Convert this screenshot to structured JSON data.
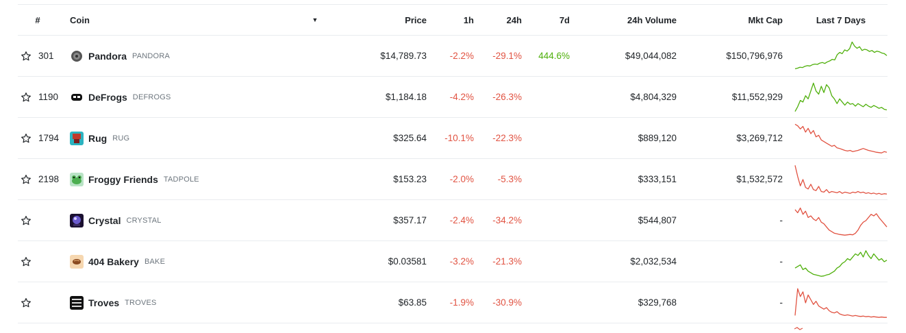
{
  "header": {
    "rank": "#",
    "coin": "Coin",
    "sort_icon": "caret-down-icon",
    "price": "Price",
    "h1": "1h",
    "h24": "24h",
    "d7": "7d",
    "volume": "24h Volume",
    "mcap": "Mkt Cap",
    "chart": "Last 7 Days"
  },
  "colors": {
    "negative": "#e15241",
    "positive": "#4eaf0a"
  },
  "coins": [
    {
      "rank": "301",
      "name": "Pandora",
      "symbol": "PANDORA",
      "icon": "pandora-coin-icon",
      "price": "$14,789.73",
      "h1": "-2.2%",
      "h24": "-29.1%",
      "d7": "444.6%",
      "volume": "$49,044,082",
      "mcap": "$150,796,976",
      "trend": "up",
      "spark": [
        0.1,
        0.12,
        0.15,
        0.14,
        0.18,
        0.2,
        0.19,
        0.23,
        0.25,
        0.24,
        0.28,
        0.3,
        0.27,
        0.32,
        0.35,
        0.4,
        0.38,
        0.55,
        0.62,
        0.58,
        0.7,
        0.66,
        0.74,
        0.95,
        0.82,
        0.75,
        0.8,
        0.68,
        0.72,
        0.7,
        0.65,
        0.68,
        0.62,
        0.66,
        0.64,
        0.6,
        0.58,
        0.52
      ]
    },
    {
      "rank": "1190",
      "name": "DeFrogs",
      "symbol": "DEFROGS",
      "icon": "defrogs-coin-icon",
      "price": "$1,184.18",
      "h1": "-4.2%",
      "h24": "-26.3%",
      "d7": "",
      "volume": "$4,804,329",
      "mcap": "$11,552,929",
      "trend": "up",
      "spark": [
        0.05,
        0.2,
        0.4,
        0.35,
        0.55,
        0.45,
        0.7,
        0.95,
        0.7,
        0.6,
        0.85,
        0.65,
        0.9,
        0.8,
        0.55,
        0.45,
        0.3,
        0.45,
        0.35,
        0.25,
        0.35,
        0.28,
        0.3,
        0.22,
        0.3,
        0.25,
        0.2,
        0.28,
        0.22,
        0.18,
        0.24,
        0.2,
        0.15,
        0.18,
        0.12,
        0.1
      ]
    },
    {
      "rank": "1794",
      "name": "Rug",
      "symbol": "RUG",
      "icon": "rug-coin-icon",
      "price": "$325.64",
      "h1": "-10.1%",
      "h24": "-22.3%",
      "d7": "",
      "volume": "$889,120",
      "mcap": "$3,269,712",
      "trend": "down",
      "spark": [
        0.95,
        0.9,
        0.8,
        0.88,
        0.7,
        0.82,
        0.65,
        0.75,
        0.55,
        0.6,
        0.45,
        0.4,
        0.35,
        0.3,
        0.25,
        0.28,
        0.2,
        0.18,
        0.15,
        0.12,
        0.1,
        0.12,
        0.08,
        0.1,
        0.12,
        0.15,
        0.18,
        0.15,
        0.12,
        0.1,
        0.08,
        0.06,
        0.05,
        0.04,
        0.08,
        0.06
      ]
    },
    {
      "rank": "2198",
      "name": "Froggy Friends",
      "symbol": "TADPOLE",
      "icon": "froggy-coin-icon",
      "price": "$153.23",
      "h1": "-2.0%",
      "h24": "-5.3%",
      "d7": "",
      "volume": "$333,151",
      "mcap": "$1,532,572",
      "trend": "down",
      "spark": [
        0.95,
        0.6,
        0.3,
        0.5,
        0.25,
        0.2,
        0.35,
        0.18,
        0.15,
        0.28,
        0.12,
        0.1,
        0.18,
        0.08,
        0.12,
        0.1,
        0.08,
        0.12,
        0.06,
        0.1,
        0.08,
        0.06,
        0.1,
        0.08,
        0.12,
        0.08,
        0.1,
        0.06,
        0.08,
        0.05,
        0.07,
        0.04,
        0.06,
        0.03,
        0.05,
        0.04
      ]
    },
    {
      "rank": "",
      "name": "Crystal",
      "symbol": "CRYSTAL",
      "icon": "crystal-coin-icon",
      "price": "$357.17",
      "h1": "-2.4%",
      "h24": "-34.2%",
      "d7": "",
      "volume": "$544,807",
      "mcap": "-",
      "trend": "down",
      "spark": [
        0.85,
        0.75,
        0.9,
        0.7,
        0.8,
        0.6,
        0.65,
        0.55,
        0.5,
        0.6,
        0.45,
        0.4,
        0.3,
        0.2,
        0.15,
        0.1,
        0.08,
        0.06,
        0.05,
        0.04,
        0.05,
        0.06,
        0.05,
        0.1,
        0.2,
        0.35,
        0.45,
        0.5,
        0.6,
        0.7,
        0.65,
        0.72,
        0.6,
        0.5,
        0.4,
        0.3
      ]
    },
    {
      "rank": "",
      "name": "404 Bakery",
      "symbol": "BAKE",
      "icon": "bakery-coin-icon",
      "price": "$0.03581",
      "h1": "-3.2%",
      "h24": "-21.3%",
      "d7": "",
      "volume": "$2,032,534",
      "mcap": "-",
      "trend": "up",
      "spark": [
        0.3,
        0.35,
        0.4,
        0.25,
        0.3,
        0.2,
        0.15,
        0.1,
        0.08,
        0.06,
        0.04,
        0.05,
        0.08,
        0.1,
        0.15,
        0.2,
        0.3,
        0.35,
        0.45,
        0.5,
        0.6,
        0.55,
        0.65,
        0.75,
        0.7,
        0.8,
        0.65,
        0.85,
        0.7,
        0.6,
        0.75,
        0.65,
        0.55,
        0.6,
        0.5,
        0.55
      ]
    },
    {
      "rank": "",
      "name": "Troves",
      "symbol": "TROVES",
      "icon": "troves-coin-icon",
      "price": "$63.85",
      "h1": "-1.9%",
      "h24": "-30.9%",
      "d7": "",
      "volume": "$329,768",
      "mcap": "-",
      "trend": "down",
      "spark": [
        0.1,
        0.95,
        0.7,
        0.85,
        0.5,
        0.75,
        0.6,
        0.45,
        0.55,
        0.4,
        0.35,
        0.3,
        0.35,
        0.25,
        0.2,
        0.18,
        0.22,
        0.15,
        0.12,
        0.1,
        0.12,
        0.1,
        0.08,
        0.1,
        0.08,
        0.07,
        0.08,
        0.06,
        0.07,
        0.05,
        0.06,
        0.05,
        0.04,
        0.05,
        0.04,
        0.04
      ]
    }
  ],
  "partial_next_row": {
    "trend": "down"
  }
}
